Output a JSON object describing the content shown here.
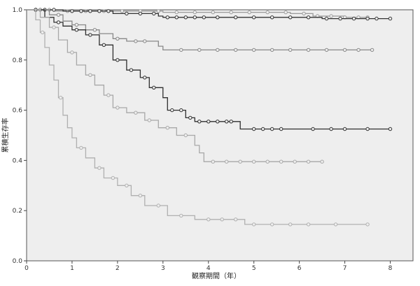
{
  "chart_data": {
    "type": "line",
    "subtype": "kaplan-meier step",
    "xlabel": "観察期間（年）",
    "ylabel": "累積生存率",
    "xlim": [
      0,
      8.5
    ],
    "ylim": [
      0,
      1.0
    ],
    "x_ticks": [
      "0",
      "1",
      "2",
      "3",
      "4",
      "5",
      "6",
      "7",
      "8"
    ],
    "y_ticks": [
      "0.0",
      "0.2",
      "0.4",
      "0.6",
      "0.8",
      "1.0"
    ],
    "grid": false,
    "legend": "none",
    "colors": {
      "plot_background": "#eeeeee",
      "dark_curve": "#333333",
      "mid_curve": "#777777",
      "light_curve": "#a8a8a8"
    },
    "series": [
      {
        "color": "#9a9a9a",
        "points": [
          [
            0,
            1.0
          ],
          [
            0.6,
            1.0
          ],
          [
            0.6,
            0.995
          ],
          [
            3.0,
            0.995
          ],
          [
            3.0,
            0.99
          ],
          [
            5.8,
            0.99
          ],
          [
            5.8,
            0.985
          ],
          [
            6.3,
            0.985
          ],
          [
            6.3,
            0.975
          ],
          [
            7.0,
            0.975
          ],
          [
            7.0,
            0.97
          ],
          [
            7.5,
            0.97
          ]
        ],
        "censor_x": [
          0.3,
          0.5,
          0.9,
          1.3,
          1.7,
          2.1,
          2.5,
          2.9,
          3.3,
          3.7,
          4.1,
          4.5,
          4.9,
          5.3,
          5.7,
          6.1,
          6.4,
          6.7,
          7.0,
          7.3,
          7.5
        ]
      },
      {
        "color": "#333333",
        "points": [
          [
            0,
            1.0
          ],
          [
            0.8,
            1.0
          ],
          [
            0.8,
            0.995
          ],
          [
            1.9,
            0.995
          ],
          [
            1.9,
            0.985
          ],
          [
            2.9,
            0.985
          ],
          [
            2.9,
            0.975
          ],
          [
            3.0,
            0.975
          ],
          [
            3.0,
            0.97
          ],
          [
            6.5,
            0.97
          ],
          [
            6.5,
            0.965
          ],
          [
            8.0,
            0.965
          ]
        ],
        "censor_x": [
          0.2,
          0.4,
          0.6,
          1.0,
          1.2,
          1.4,
          1.6,
          1.8,
          2.2,
          2.5,
          2.8,
          3.1,
          3.3,
          3.5,
          3.7,
          3.9,
          4.2,
          4.6,
          5.0,
          5.4,
          5.8,
          6.2,
          6.6,
          6.9,
          7.2,
          7.5,
          7.7,
          8.0
        ]
      },
      {
        "color": "#888888",
        "points": [
          [
            0,
            1.0
          ],
          [
            0.5,
            1.0
          ],
          [
            0.5,
            0.98
          ],
          [
            0.8,
            0.98
          ],
          [
            0.8,
            0.955
          ],
          [
            1.0,
            0.955
          ],
          [
            1.0,
            0.94
          ],
          [
            1.3,
            0.94
          ],
          [
            1.3,
            0.92
          ],
          [
            1.6,
            0.92
          ],
          [
            1.6,
            0.905
          ],
          [
            1.9,
            0.905
          ],
          [
            1.9,
            0.885
          ],
          [
            2.2,
            0.885
          ],
          [
            2.2,
            0.875
          ],
          [
            2.9,
            0.875
          ],
          [
            2.9,
            0.855
          ],
          [
            3.0,
            0.855
          ],
          [
            3.0,
            0.84
          ],
          [
            7.6,
            0.84
          ]
        ],
        "censor_x": [
          0.3,
          0.7,
          1.1,
          1.5,
          2.0,
          2.4,
          2.6,
          3.4,
          3.8,
          4.2,
          4.6,
          5.0,
          5.4,
          5.8,
          6.2,
          6.6,
          7.0,
          7.3,
          7.6
        ]
      },
      {
        "color": "#2f2f2f",
        "points": [
          [
            0,
            1.0
          ],
          [
            0.4,
            1.0
          ],
          [
            0.4,
            0.97
          ],
          [
            0.6,
            0.97
          ],
          [
            0.6,
            0.95
          ],
          [
            0.8,
            0.95
          ],
          [
            0.8,
            0.935
          ],
          [
            1.0,
            0.935
          ],
          [
            1.0,
            0.92
          ],
          [
            1.3,
            0.92
          ],
          [
            1.3,
            0.9
          ],
          [
            1.6,
            0.9
          ],
          [
            1.6,
            0.86
          ],
          [
            1.9,
            0.86
          ],
          [
            1.9,
            0.8
          ],
          [
            2.2,
            0.8
          ],
          [
            2.2,
            0.76
          ],
          [
            2.5,
            0.76
          ],
          [
            2.5,
            0.73
          ],
          [
            2.7,
            0.73
          ],
          [
            2.7,
            0.69
          ],
          [
            3.0,
            0.69
          ],
          [
            3.0,
            0.65
          ],
          [
            3.1,
            0.65
          ],
          [
            3.1,
            0.6
          ],
          [
            3.5,
            0.6
          ],
          [
            3.5,
            0.57
          ],
          [
            3.7,
            0.57
          ],
          [
            3.7,
            0.555
          ],
          [
            4.7,
            0.555
          ],
          [
            4.7,
            0.525
          ],
          [
            8.0,
            0.525
          ]
        ],
        "censor_x": [
          0.2,
          0.7,
          1.1,
          1.4,
          1.7,
          2.0,
          2.3,
          2.6,
          2.8,
          3.2,
          3.4,
          3.6,
          3.8,
          4.0,
          4.2,
          4.4,
          4.5,
          5.0,
          5.2,
          5.4,
          5.6,
          6.3,
          6.7,
          7.0,
          7.5,
          8.0
        ]
      },
      {
        "color": "#a8a8a8",
        "points": [
          [
            0,
            1.0
          ],
          [
            0.3,
            1.0
          ],
          [
            0.3,
            0.97
          ],
          [
            0.5,
            0.97
          ],
          [
            0.5,
            0.93
          ],
          [
            0.7,
            0.93
          ],
          [
            0.7,
            0.88
          ],
          [
            0.9,
            0.88
          ],
          [
            0.9,
            0.83
          ],
          [
            1.1,
            0.83
          ],
          [
            1.1,
            0.78
          ],
          [
            1.3,
            0.78
          ],
          [
            1.3,
            0.74
          ],
          [
            1.5,
            0.74
          ],
          [
            1.5,
            0.7
          ],
          [
            1.7,
            0.7
          ],
          [
            1.7,
            0.66
          ],
          [
            1.9,
            0.66
          ],
          [
            1.9,
            0.61
          ],
          [
            2.2,
            0.61
          ],
          [
            2.2,
            0.59
          ],
          [
            2.6,
            0.59
          ],
          [
            2.6,
            0.56
          ],
          [
            2.9,
            0.56
          ],
          [
            2.9,
            0.53
          ],
          [
            3.3,
            0.53
          ],
          [
            3.3,
            0.5
          ],
          [
            3.7,
            0.5
          ],
          [
            3.7,
            0.46
          ],
          [
            3.8,
            0.46
          ],
          [
            3.8,
            0.43
          ],
          [
            3.9,
            0.43
          ],
          [
            3.9,
            0.395
          ],
          [
            6.5,
            0.395
          ]
        ],
        "censor_x": [
          0.6,
          1.0,
          1.4,
          1.8,
          2.0,
          2.4,
          2.7,
          3.1,
          3.5,
          4.1,
          4.4,
          4.7,
          5.0,
          5.3,
          5.6,
          5.9,
          6.2,
          6.5
        ]
      },
      {
        "color": "#b0b0b0",
        "points": [
          [
            0,
            1.0
          ],
          [
            0.2,
            1.0
          ],
          [
            0.2,
            0.96
          ],
          [
            0.3,
            0.96
          ],
          [
            0.3,
            0.91
          ],
          [
            0.4,
            0.91
          ],
          [
            0.4,
            0.85
          ],
          [
            0.5,
            0.85
          ],
          [
            0.5,
            0.78
          ],
          [
            0.6,
            0.78
          ],
          [
            0.6,
            0.72
          ],
          [
            0.7,
            0.72
          ],
          [
            0.7,
            0.65
          ],
          [
            0.8,
            0.65
          ],
          [
            0.8,
            0.58
          ],
          [
            0.9,
            0.58
          ],
          [
            0.9,
            0.53
          ],
          [
            1.0,
            0.53
          ],
          [
            1.0,
            0.49
          ],
          [
            1.1,
            0.49
          ],
          [
            1.1,
            0.45
          ],
          [
            1.3,
            0.45
          ],
          [
            1.3,
            0.41
          ],
          [
            1.5,
            0.41
          ],
          [
            1.5,
            0.37
          ],
          [
            1.7,
            0.37
          ],
          [
            1.7,
            0.33
          ],
          [
            2.0,
            0.33
          ],
          [
            2.0,
            0.3
          ],
          [
            2.3,
            0.3
          ],
          [
            2.3,
            0.26
          ],
          [
            2.6,
            0.26
          ],
          [
            2.6,
            0.22
          ],
          [
            3.1,
            0.22
          ],
          [
            3.1,
            0.18
          ],
          [
            3.7,
            0.18
          ],
          [
            3.7,
            0.165
          ],
          [
            4.8,
            0.165
          ],
          [
            4.8,
            0.145
          ],
          [
            7.5,
            0.145
          ]
        ],
        "censor_x": [
          0.35,
          0.75,
          1.2,
          1.6,
          1.9,
          2.2,
          2.5,
          2.9,
          3.4,
          4.0,
          4.3,
          4.6,
          5.0,
          5.4,
          5.8,
          6.2,
          6.8,
          7.5
        ]
      }
    ]
  }
}
